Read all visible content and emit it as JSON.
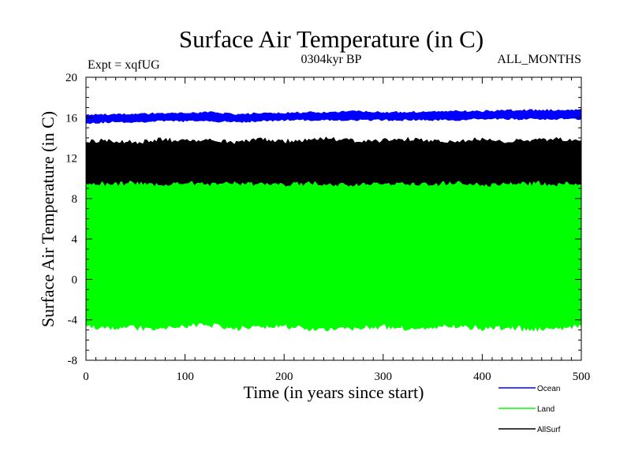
{
  "chart_data": {
    "type": "line",
    "title": "Surface Air Temperature (in C)",
    "subtitle": "0304kyr BP",
    "left_note": "Expt = xqfUG",
    "right_note": "ALL_MONTHS",
    "xlabel": "Time (in years since start)",
    "ylabel": "Surface Air Temperature (in C)",
    "xlim": [
      0,
      500
    ],
    "ylim": [
      -8,
      20
    ],
    "x_ticks": [
      0,
      100,
      200,
      300,
      400,
      500
    ],
    "y_ticks": [
      -8,
      -4,
      0,
      4,
      8,
      12,
      16,
      20
    ],
    "series": [
      {
        "name": "Land",
        "color": "#00ff00",
        "band_low": -4.8,
        "band_high": 9.9,
        "x": [
          0,
          25,
          50,
          75,
          100,
          125,
          150,
          175,
          200,
          225,
          250,
          275,
          300,
          325,
          350,
          375,
          400,
          425,
          450,
          475,
          500
        ],
        "low": [
          -4.6,
          -4.8,
          -4.7,
          -4.9,
          -4.6,
          -4.5,
          -4.8,
          -4.7,
          -4.6,
          -4.8,
          -5.0,
          -4.7,
          -4.6,
          -4.8,
          -4.7,
          -4.6,
          -4.8,
          -4.7,
          -4.9,
          -4.7,
          -4.6
        ],
        "high": [
          9.8,
          9.9,
          9.7,
          10.0,
          9.8,
          9.9,
          9.7,
          10.0,
          9.9,
          9.8,
          10.1,
          9.9,
          9.8,
          10.0,
          9.9,
          9.8,
          10.0,
          9.9,
          9.8,
          10.0,
          9.9
        ]
      },
      {
        "name": "AllSurf",
        "color": "#000000",
        "band_low": 9.5,
        "band_high": 13.7,
        "x": [
          0,
          25,
          50,
          75,
          100,
          125,
          150,
          175,
          200,
          225,
          250,
          275,
          300,
          325,
          350,
          375,
          400,
          425,
          450,
          475,
          500
        ],
        "low": [
          9.6,
          9.5,
          9.6,
          9.4,
          9.6,
          9.5,
          9.6,
          9.5,
          9.4,
          9.6,
          9.5,
          9.4,
          9.6,
          9.5,
          9.5,
          9.6,
          9.4,
          9.5,
          9.6,
          9.5,
          9.6
        ],
        "high": [
          13.6,
          13.7,
          13.5,
          13.8,
          13.6,
          13.7,
          13.5,
          13.8,
          13.6,
          13.7,
          13.9,
          13.6,
          13.7,
          13.8,
          13.6,
          13.7,
          13.8,
          13.6,
          13.7,
          13.8,
          13.7
        ]
      },
      {
        "name": "Ocean",
        "color": "#0000ff",
        "band_low": 15.5,
        "band_high": 16.6,
        "x": [
          0,
          25,
          50,
          75,
          100,
          125,
          150,
          175,
          200,
          225,
          250,
          275,
          300,
          325,
          350,
          375,
          400,
          425,
          450,
          475,
          500
        ],
        "low": [
          15.5,
          15.6,
          15.6,
          15.7,
          15.7,
          15.7,
          15.6,
          15.7,
          15.8,
          15.8,
          15.8,
          15.8,
          15.8,
          15.8,
          15.8,
          15.8,
          15.9,
          15.9,
          15.9,
          15.9,
          15.9
        ],
        "high": [
          16.2,
          16.3,
          16.3,
          16.4,
          16.4,
          16.5,
          16.3,
          16.4,
          16.4,
          16.5,
          16.5,
          16.6,
          16.5,
          16.5,
          16.6,
          16.6,
          16.6,
          16.7,
          16.7,
          16.7,
          16.8
        ]
      }
    ],
    "legend": [
      {
        "label": "Ocean",
        "color": "#0000ff"
      },
      {
        "label": "Land",
        "color": "#00ff00"
      },
      {
        "label": "AllSurf",
        "color": "#000000"
      }
    ],
    "legend_placement": "bottom-right"
  }
}
